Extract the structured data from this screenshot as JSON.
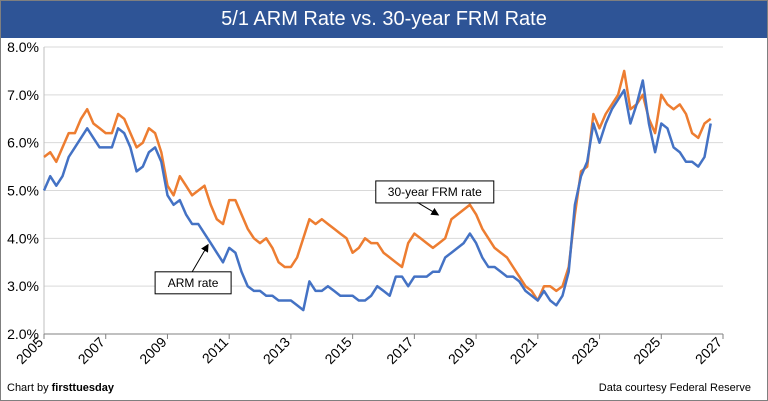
{
  "title": "5/1 ARM Rate vs. 30-year FRM Rate",
  "credits": {
    "left_prefix": "Chart by ",
    "left_brand": "firsttuesday",
    "right": "Data courtesy Federal Reserve"
  },
  "annotations": {
    "frm": "30-year FRM rate",
    "arm": "ARM rate"
  },
  "colors": {
    "header": "#2e5496",
    "arm": "#4472c4",
    "frm": "#ed7d31"
  },
  "chart_data": {
    "type": "line",
    "title": "5/1 ARM Rate vs. 30-year FRM Rate",
    "xlabel": "",
    "ylabel": "",
    "xlim": [
      2005,
      2027
    ],
    "ylim": [
      2.0,
      8.0
    ],
    "x_ticks": [
      "2005",
      "2007",
      "2009",
      "2011",
      "2013",
      "2015",
      "2017",
      "2019",
      "2021",
      "2023",
      "2025",
      "2027"
    ],
    "y_ticks": [
      "2.0%",
      "3.0%",
      "4.0%",
      "5.0%",
      "6.0%",
      "7.0%",
      "8.0%"
    ],
    "grid": "horizontal",
    "series": [
      {
        "name": "30-year FRM rate",
        "color": "#ed7d31",
        "x": [
          2005.0,
          2005.2,
          2005.4,
          2005.6,
          2005.8,
          2006.0,
          2006.2,
          2006.4,
          2006.6,
          2006.8,
          2007.0,
          2007.2,
          2007.4,
          2007.6,
          2007.8,
          2008.0,
          2008.2,
          2008.4,
          2008.6,
          2008.8,
          2009.0,
          2009.2,
          2009.4,
          2009.6,
          2009.8,
          2010.0,
          2010.2,
          2010.4,
          2010.6,
          2010.8,
          2011.0,
          2011.2,
          2011.4,
          2011.6,
          2011.8,
          2012.0,
          2012.2,
          2012.4,
          2012.6,
          2012.8,
          2013.0,
          2013.2,
          2013.4,
          2013.6,
          2013.8,
          2014.0,
          2014.2,
          2014.4,
          2014.6,
          2014.8,
          2015.0,
          2015.2,
          2015.4,
          2015.6,
          2015.8,
          2016.0,
          2016.2,
          2016.4,
          2016.6,
          2016.8,
          2017.0,
          2017.2,
          2017.4,
          2017.6,
          2017.8,
          2018.0,
          2018.2,
          2018.4,
          2018.6,
          2018.8,
          2019.0,
          2019.2,
          2019.4,
          2019.6,
          2019.8,
          2020.0,
          2020.2,
          2020.4,
          2020.6,
          2020.8,
          2021.0,
          2021.2,
          2021.4,
          2021.6,
          2021.8,
          2022.0,
          2022.2,
          2022.4,
          2022.6,
          2022.8,
          2023.0,
          2023.2,
          2023.4,
          2023.6,
          2023.8,
          2024.0,
          2024.2,
          2024.4,
          2024.6,
          2024.8,
          2025.0,
          2025.2,
          2025.4,
          2025.6,
          2025.8,
          2026.0,
          2026.2,
          2026.4,
          2026.6
        ],
        "values": [
          5.7,
          5.8,
          5.6,
          5.9,
          6.2,
          6.2,
          6.5,
          6.7,
          6.4,
          6.3,
          6.2,
          6.2,
          6.6,
          6.5,
          6.2,
          5.9,
          6.0,
          6.3,
          6.2,
          5.8,
          5.1,
          4.9,
          5.3,
          5.1,
          4.9,
          5.0,
          5.1,
          4.7,
          4.4,
          4.3,
          4.8,
          4.8,
          4.5,
          4.2,
          4.0,
          3.9,
          4.0,
          3.8,
          3.5,
          3.4,
          3.4,
          3.6,
          4.0,
          4.4,
          4.3,
          4.4,
          4.3,
          4.2,
          4.1,
          4.0,
          3.7,
          3.8,
          4.0,
          3.9,
          3.9,
          3.7,
          3.6,
          3.5,
          3.4,
          3.9,
          4.1,
          4.0,
          3.9,
          3.8,
          3.9,
          4.0,
          4.4,
          4.5,
          4.6,
          4.7,
          4.5,
          4.2,
          4.0,
          3.8,
          3.7,
          3.6,
          3.4,
          3.2,
          3.0,
          2.9,
          2.7,
          3.0,
          3.0,
          2.9,
          3.0,
          3.4,
          4.5,
          5.4,
          5.5,
          6.6,
          6.3,
          6.6,
          6.8,
          7.0,
          7.5,
          6.7,
          6.8,
          7.0,
          6.5,
          6.2,
          7.0,
          6.8,
          6.7,
          6.8,
          6.6,
          6.2,
          6.1,
          6.4,
          6.5
        ]
      },
      {
        "name": "ARM rate",
        "color": "#4472c4",
        "x": [
          2005.0,
          2005.2,
          2005.4,
          2005.6,
          2005.8,
          2006.0,
          2006.2,
          2006.4,
          2006.6,
          2006.8,
          2007.0,
          2007.2,
          2007.4,
          2007.6,
          2007.8,
          2008.0,
          2008.2,
          2008.4,
          2008.6,
          2008.8,
          2009.0,
          2009.2,
          2009.4,
          2009.6,
          2009.8,
          2010.0,
          2010.2,
          2010.4,
          2010.6,
          2010.8,
          2011.0,
          2011.2,
          2011.4,
          2011.6,
          2011.8,
          2012.0,
          2012.2,
          2012.4,
          2012.6,
          2012.8,
          2013.0,
          2013.2,
          2013.4,
          2013.6,
          2013.8,
          2014.0,
          2014.2,
          2014.4,
          2014.6,
          2014.8,
          2015.0,
          2015.2,
          2015.4,
          2015.6,
          2015.8,
          2016.0,
          2016.2,
          2016.4,
          2016.6,
          2016.8,
          2017.0,
          2017.2,
          2017.4,
          2017.6,
          2017.8,
          2018.0,
          2018.2,
          2018.4,
          2018.6,
          2018.8,
          2019.0,
          2019.2,
          2019.4,
          2019.6,
          2019.8,
          2020.0,
          2020.2,
          2020.4,
          2020.6,
          2020.8,
          2021.0,
          2021.2,
          2021.4,
          2021.6,
          2021.8,
          2022.0,
          2022.2,
          2022.4,
          2022.6,
          2022.8,
          2023.0,
          2023.2,
          2023.4,
          2023.6,
          2023.8,
          2024.0,
          2024.2,
          2024.4,
          2024.6,
          2024.8,
          2025.0,
          2025.2,
          2025.4,
          2025.6,
          2025.8,
          2026.0,
          2026.2,
          2026.4,
          2026.6
        ],
        "values": [
          5.0,
          5.3,
          5.1,
          5.3,
          5.7,
          5.9,
          6.1,
          6.3,
          6.1,
          5.9,
          5.9,
          5.9,
          6.3,
          6.2,
          5.9,
          5.4,
          5.5,
          5.8,
          5.9,
          5.6,
          4.9,
          4.7,
          4.8,
          4.5,
          4.3,
          4.3,
          4.1,
          3.9,
          3.7,
          3.5,
          3.8,
          3.7,
          3.3,
          3.0,
          2.9,
          2.9,
          2.8,
          2.8,
          2.7,
          2.7,
          2.7,
          2.6,
          2.5,
          3.1,
          2.9,
          2.9,
          3.0,
          2.9,
          2.8,
          2.8,
          2.8,
          2.7,
          2.7,
          2.8,
          3.0,
          2.9,
          2.8,
          3.2,
          3.2,
          3.0,
          3.2,
          3.2,
          3.2,
          3.3,
          3.3,
          3.6,
          3.7,
          3.8,
          3.9,
          4.1,
          3.9,
          3.6,
          3.4,
          3.4,
          3.3,
          3.2,
          3.2,
          3.1,
          2.9,
          2.8,
          2.7,
          2.9,
          2.7,
          2.6,
          2.8,
          3.3,
          4.7,
          5.3,
          5.6,
          6.4,
          6.0,
          6.4,
          6.7,
          6.9,
          7.1,
          6.4,
          6.8,
          7.3,
          6.4,
          5.8,
          6.4,
          6.3,
          5.9,
          5.8,
          5.6,
          5.6,
          5.5,
          5.7,
          6.4
        ]
      }
    ]
  }
}
